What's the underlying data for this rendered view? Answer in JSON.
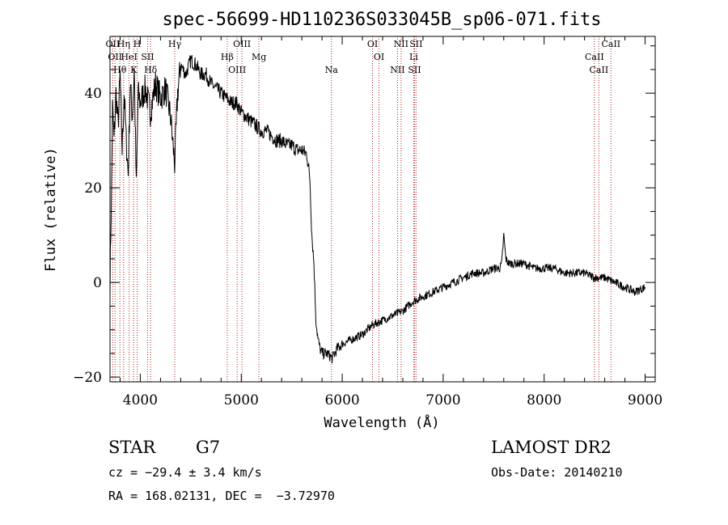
{
  "chart_data": {
    "type": "line",
    "title": "spec-56699-HD110236S033045B_sp06-071.fits",
    "xlabel": "Wavelength (Å)",
    "ylabel": "Flux (relative)",
    "xlim": [
      3700,
      9100
    ],
    "ylim": [
      -21,
      52
    ],
    "xticks": [
      4000,
      5000,
      6000,
      7000,
      8000,
      9000
    ],
    "yticks": [
      -20,
      0,
      20,
      40
    ],
    "xtick_labels": [
      "4000",
      "5000",
      "6000",
      "7000",
      "8000",
      "9000"
    ],
    "ytick_labels": [
      "−20",
      "0",
      "20",
      "40"
    ],
    "series": [
      {
        "name": "flux",
        "x": [
          3700,
          3715,
          3725,
          3740,
          3760,
          3780,
          3800,
          3820,
          3840,
          3860,
          3880,
          3900,
          3920,
          3940,
          3960,
          3980,
          4000,
          4050,
          4100,
          4150,
          4200,
          4250,
          4300,
          4340,
          4370,
          4400,
          4450,
          4500,
          4550,
          4600,
          4650,
          4700,
          4750,
          4800,
          4850,
          4900,
          4950,
          5000,
          5050,
          5100,
          5150,
          5200,
          5250,
          5300,
          5350,
          5400,
          5450,
          5500,
          5550,
          5600,
          5650,
          5680,
          5700,
          5720,
          5740,
          5760,
          5780,
          5800,
          5850,
          5900,
          5950,
          6000,
          6100,
          6200,
          6300,
          6400,
          6500,
          6600,
          6700,
          6800,
          6900,
          7000,
          7100,
          7200,
          7300,
          7400,
          7500,
          7560,
          7580,
          7600,
          7620,
          7650,
          7700,
          7800,
          7900,
          8000,
          8100,
          8200,
          8300,
          8400,
          8500,
          8600,
          8700,
          8800,
          8900,
          9000
        ],
        "y": [
          0,
          20,
          37,
          30,
          40,
          33,
          44,
          28,
          40,
          30,
          23,
          42,
          35,
          45,
          20,
          40,
          38,
          41,
          36,
          42,
          39,
          41,
          35,
          25,
          40,
          46,
          44,
          47,
          46,
          44,
          44,
          42,
          41,
          40,
          39,
          38,
          38,
          36,
          35,
          34,
          33,
          32,
          32,
          31,
          30,
          30,
          29,
          29,
          28,
          28,
          27,
          22,
          10,
          4,
          -8,
          -12,
          -14,
          -15,
          -15,
          -16,
          -14,
          -13,
          -12,
          -11,
          -9,
          -8,
          -7,
          -6,
          -4,
          -3,
          -2,
          -1,
          0,
          1,
          2,
          2,
          3,
          3,
          4,
          10,
          5,
          4,
          4,
          4,
          3,
          3,
          3,
          2,
          2,
          2,
          1,
          1,
          0,
          -1,
          -2,
          -1
        ]
      }
    ],
    "lines": [
      {
        "wl": 3727,
        "labels": [
          "OII"
        ]
      },
      {
        "wl": 3750,
        "labels": [
          "OII"
        ]
      },
      {
        "wl": 3798,
        "labels": [
          "Hθ"
        ]
      },
      {
        "wl": 3835,
        "labels": [
          "Hη"
        ]
      },
      {
        "wl": 3889,
        "labels": [
          "HeI"
        ]
      },
      {
        "wl": 3934,
        "labels": [
          "K"
        ]
      },
      {
        "wl": 3969,
        "labels": [
          "H"
        ]
      },
      {
        "wl": 4072,
        "labels": [
          "SII"
        ]
      },
      {
        "wl": 4102,
        "labels": [
          "Hδ"
        ]
      },
      {
        "wl": 4341,
        "labels": [
          "Hγ"
        ]
      },
      {
        "wl": 4861,
        "labels": [
          "Hβ"
        ]
      },
      {
        "wl": 4959,
        "labels": [
          "OIII"
        ]
      },
      {
        "wl": 5007,
        "labels": [
          "OIII"
        ]
      },
      {
        "wl": 5175,
        "labels": [
          "Mg"
        ]
      },
      {
        "wl": 5893,
        "labels": [
          "Na"
        ]
      },
      {
        "wl": 6300,
        "labels": [
          "OI"
        ]
      },
      {
        "wl": 6364,
        "labels": [
          "OI"
        ]
      },
      {
        "wl": 6548,
        "labels": [
          "NII"
        ]
      },
      {
        "wl": 6583,
        "labels": [
          "NII"
        ]
      },
      {
        "wl": 6708,
        "labels": [
          "Li"
        ]
      },
      {
        "wl": 6716,
        "labels": [
          "SII"
        ]
      },
      {
        "wl": 6731,
        "labels": [
          "SII"
        ]
      },
      {
        "wl": 8498,
        "labels": [
          "CaII"
        ]
      },
      {
        "wl": 8542,
        "labels": [
          "CaII"
        ]
      },
      {
        "wl": 8662,
        "labels": [
          "CaII"
        ]
      }
    ]
  },
  "info": {
    "class_label": "STAR",
    "subclass": "G7",
    "cz_text": "cz = −29.4 ± 3.4 km/s",
    "radec_text": "RA = 168.02131, DEC =  −3.72970",
    "survey": "LAMOST DR2",
    "obs_date_text": "Obs-Date: 20140210"
  }
}
